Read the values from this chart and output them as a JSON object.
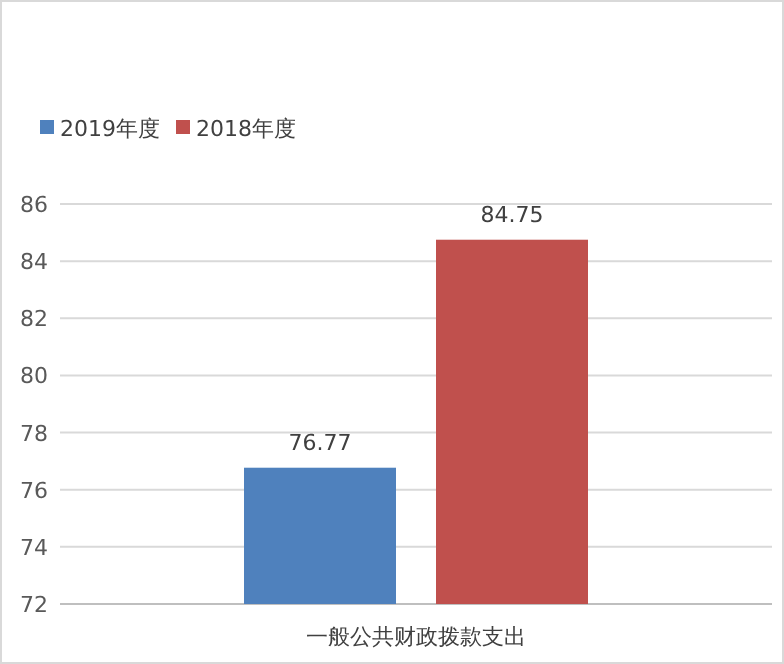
{
  "chart_data": {
    "type": "bar",
    "categories": [
      "一般公共财政拨款支出"
    ],
    "series": [
      {
        "name": "2019年度",
        "color": "#4f81bd",
        "values": [
          76.77
        ]
      },
      {
        "name": "2018年度",
        "color": "#c0504d",
        "values": [
          84.75
        ]
      }
    ],
    "ylim": [
      72,
      86
    ],
    "yticks": [
      72,
      74,
      76,
      78,
      80,
      82,
      84,
      86
    ],
    "grid": "y",
    "legend": "top left",
    "data_labels": true
  }
}
